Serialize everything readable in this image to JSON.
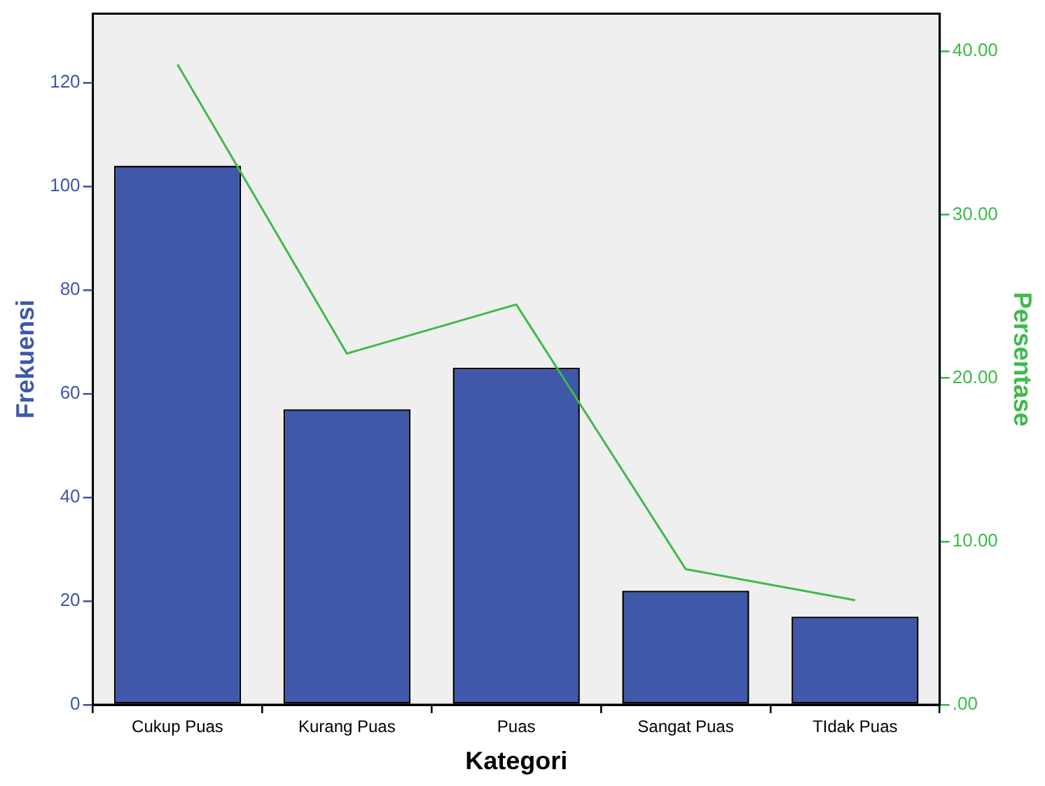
{
  "chart_data": {
    "type": "bar",
    "categories": [
      "Cukup Puas",
      "Kurang Puas",
      "Puas",
      "Sangat Puas",
      "TIdak Puas"
    ],
    "xlabel": "Kategori",
    "ylabel": "Frekuensi",
    "y2label": "Persentase",
    "series": [
      {
        "color": "#3f58a9",
        "values": [
          104,
          57,
          65,
          22,
          17
        ]
      },
      {
        "type": "line",
        "axis": "y2",
        "color": "#3dba4a",
        "values": [
          39.2,
          21.5,
          24.5,
          8.3,
          6.4
        ]
      }
    ],
    "ylim": [
      0,
      133.3
    ],
    "yticks": [
      0,
      20,
      40,
      60,
      80,
      100,
      120
    ],
    "y2lim": [
      0,
      42.3
    ],
    "y2ticks": [
      {
        "value": 0,
        "label": ".00"
      },
      {
        "value": 10,
        "label": "10.00"
      },
      {
        "value": 20,
        "label": "20.00"
      },
      {
        "value": 30,
        "label": "30.00"
      },
      {
        "value": 40,
        "label": "40.00"
      }
    ],
    "grid": false,
    "legend": false,
    "marker": "none"
  }
}
